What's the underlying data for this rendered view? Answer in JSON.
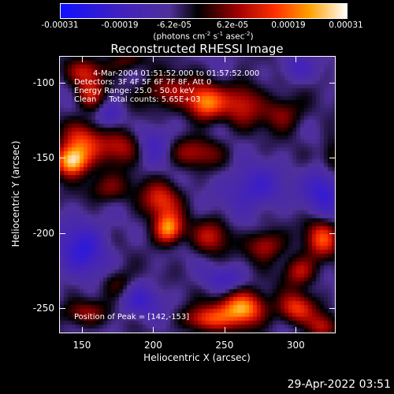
{
  "colorbar": {
    "labels": [
      "-0.00031",
      "-0.00019",
      "-6.2e-05",
      "6.2e-05",
      "0.00019",
      "0.00031"
    ],
    "units_pre": "(photons cm",
    "units_exp1": "-2",
    "units_mid": " s",
    "units_exp2": "-1",
    "units_post": " asec",
    "units_exp3": "-2",
    "units_end": ")",
    "range": [
      -0.00031,
      0.00031
    ]
  },
  "annotations": {
    "line1": "4-Mar-2004 01:51:52.000 to 01:57:52.000",
    "line2": "Detectors: 3F 4F 5F 6F 7F 8F, Att 0",
    "line3": "Energy Range: 25.0 - 50.0 keV",
    "line4": "Clean     Total counts: 5.65E+03",
    "peak": "Position of Peak = [142,-153]"
  },
  "timestamp": "29-Apr-2022 03:51",
  "chart_data": {
    "type": "heatmap",
    "title": "Reconstructed RHESSI Image",
    "xlabel": "Heliocentric X (arcsec)",
    "ylabel": "Heliocentric Y (arcsec)",
    "xlim": [
      134,
      328
    ],
    "ylim": [
      -267,
      -82
    ],
    "xticks": [
      150,
      200,
      250,
      300
    ],
    "xtick_labels": [
      "150",
      "200",
      "250",
      "300"
    ],
    "yticks": [
      -100,
      -150,
      -200,
      -250
    ],
    "ytick_labels": [
      "-100",
      "-150",
      "-200",
      "-250"
    ],
    "colormap": "blue-purple-black-red-orange-yellow-white",
    "peak_position": [
      142,
      -153
    ],
    "sources": [
      {
        "x": 142,
        "y": -152,
        "amp": 1.0,
        "sx": 8,
        "sy": 7
      },
      {
        "x": 150,
        "y": -138,
        "amp": 0.55,
        "sx": 10,
        "sy": 9
      },
      {
        "x": 177,
        "y": -142,
        "amp": 0.5,
        "sx": 11,
        "sy": 8
      },
      {
        "x": 166,
        "y": -170,
        "amp": 0.35,
        "sx": 12,
        "sy": 7
      },
      {
        "x": 210,
        "y": -105,
        "amp": 0.45,
        "sx": 13,
        "sy": 8
      },
      {
        "x": 236,
        "y": -113,
        "amp": 0.8,
        "sx": 9,
        "sy": 8
      },
      {
        "x": 262,
        "y": -113,
        "amp": 0.5,
        "sx": 10,
        "sy": 10
      },
      {
        "x": 290,
        "y": -120,
        "amp": 0.4,
        "sx": 10,
        "sy": 8
      },
      {
        "x": 230,
        "y": -146,
        "amp": 0.4,
        "sx": 14,
        "sy": 7
      },
      {
        "x": 155,
        "y": -107,
        "amp": 0.5,
        "sx": 7,
        "sy": 7
      },
      {
        "x": 152,
        "y": -92,
        "amp": 0.45,
        "sx": 9,
        "sy": 6
      },
      {
        "x": 205,
        "y": -178,
        "amp": 0.55,
        "sx": 10,
        "sy": 9
      },
      {
        "x": 210,
        "y": -197,
        "amp": 0.85,
        "sx": 7,
        "sy": 7
      },
      {
        "x": 240,
        "y": -202,
        "amp": 0.45,
        "sx": 9,
        "sy": 8
      },
      {
        "x": 278,
        "y": -208,
        "amp": 0.5,
        "sx": 9,
        "sy": 7
      },
      {
        "x": 318,
        "y": -203,
        "amp": 0.65,
        "sx": 8,
        "sy": 9
      },
      {
        "x": 302,
        "y": -225,
        "amp": 0.5,
        "sx": 8,
        "sy": 7
      },
      {
        "x": 262,
        "y": -250,
        "amp": 0.95,
        "sx": 11,
        "sy": 8
      },
      {
        "x": 236,
        "y": -257,
        "amp": 0.6,
        "sx": 11,
        "sy": 6
      },
      {
        "x": 300,
        "y": -250,
        "amp": 0.6,
        "sx": 9,
        "sy": 7
      },
      {
        "x": 318,
        "y": -262,
        "amp": 0.45,
        "sx": 7,
        "sy": 6
      },
      {
        "x": 150,
        "y": -253,
        "amp": 0.4,
        "sx": 12,
        "sy": 6
      },
      {
        "x": 175,
        "y": -233,
        "amp": 0.3,
        "sx": 8,
        "sy": 7
      },
      {
        "x": 325,
        "y": -150,
        "amp": 0.35,
        "sx": 6,
        "sy": 10
      },
      {
        "x": 180,
        "y": -85,
        "amp": 0.3,
        "sx": 10,
        "sy": 5
      },
      {
        "x": 200,
        "y": -140,
        "amp": -0.35,
        "sx": 9,
        "sy": 9
      },
      {
        "x": 150,
        "y": -210,
        "amp": -0.45,
        "sx": 12,
        "sy": 14
      },
      {
        "x": 320,
        "y": -170,
        "amp": -0.5,
        "sx": 9,
        "sy": 12
      },
      {
        "x": 270,
        "y": -170,
        "amp": -0.4,
        "sx": 14,
        "sy": 10
      },
      {
        "x": 250,
        "y": -230,
        "amp": -0.3,
        "sx": 10,
        "sy": 6
      },
      {
        "x": 300,
        "y": -90,
        "amp": -0.3,
        "sx": 8,
        "sy": 6
      },
      {
        "x": 190,
        "y": -245,
        "amp": -0.35,
        "sx": 10,
        "sy": 8
      },
      {
        "x": 170,
        "y": -120,
        "amp": -0.3,
        "sx": 6,
        "sy": 6
      }
    ]
  }
}
